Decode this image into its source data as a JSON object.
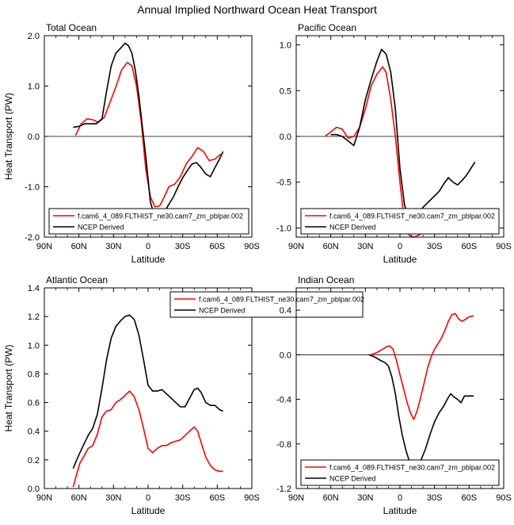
{
  "figure_title": "Annual Implied Northward Ocean Heat Transport",
  "colors": {
    "model": "#ff0000",
    "obs": "#000000",
    "axis": "#000000"
  },
  "chart_data": [
    {
      "type": "line",
      "title": "Total Ocean",
      "xlabel": "Latitude",
      "ylabel": "Heat Transport (PW)",
      "xlim": [
        -90,
        90
      ],
      "ylim": [
        -2.0,
        2.0
      ],
      "xticks": [
        -90,
        -60,
        -30,
        0,
        30,
        60,
        90
      ],
      "xticklabels": [
        "90N",
        "60N",
        "30N",
        "0",
        "30S",
        "60S",
        "90S"
      ],
      "yticks": [
        -2.0,
        -1.0,
        0.0,
        1.0,
        2.0
      ],
      "yticklabels": [
        "-2.0",
        "-1.0",
        "0.0",
        "1.0",
        "2.0"
      ],
      "zero_line": true,
      "legend_placement": "lower-left",
      "series": [
        {
          "name": "f.cam6_4_089.FLTHIST_ne30.cam7_zm_pblpar.002",
          "color": "#ff0000",
          "x": [
            -63,
            -58,
            -53,
            -48,
            -43,
            -38,
            -33,
            -28,
            -23,
            -18,
            -14,
            -10,
            -6,
            -2,
            2,
            6,
            10,
            14,
            18,
            23,
            28,
            33,
            38,
            43,
            48,
            53,
            58,
            63
          ],
          "y": [
            0.02,
            0.25,
            0.35,
            0.33,
            0.28,
            0.38,
            0.68,
            0.98,
            1.32,
            1.47,
            1.4,
            1.0,
            0.3,
            -0.65,
            -1.2,
            -1.4,
            -1.38,
            -1.2,
            -1.0,
            -0.95,
            -0.8,
            -0.55,
            -0.4,
            -0.22,
            -0.3,
            -0.48,
            -0.45,
            -0.35
          ]
        },
        {
          "name": "NCEP Derived",
          "color": "#000000",
          "x": [
            -65,
            -60,
            -55,
            -50,
            -45,
            -40,
            -36,
            -32,
            -28,
            -24,
            -20,
            -17,
            -14,
            -11,
            -8,
            -5,
            -2,
            2,
            6,
            10,
            14,
            18,
            22,
            26,
            30,
            34,
            38,
            42,
            46,
            50,
            54,
            58,
            62,
            65
          ],
          "y": [
            0.18,
            0.2,
            0.25,
            0.25,
            0.25,
            0.35,
            0.9,
            1.4,
            1.65,
            1.75,
            1.85,
            1.8,
            1.65,
            1.3,
            0.8,
            0.2,
            -0.4,
            -1.3,
            -1.62,
            -1.68,
            -1.5,
            -1.35,
            -1.2,
            -1.0,
            -0.82,
            -0.68,
            -0.55,
            -0.52,
            -0.62,
            -0.75,
            -0.8,
            -0.62,
            -0.45,
            -0.3
          ]
        }
      ]
    },
    {
      "type": "line",
      "title": "Pacific Ocean",
      "xlabel": "Latitude",
      "ylabel": "",
      "xlim": [
        -90,
        90
      ],
      "ylim": [
        -1.1,
        1.1
      ],
      "xticks": [
        -90,
        -60,
        -30,
        0,
        30,
        60,
        90
      ],
      "xticklabels": [
        "90N",
        "60N",
        "30N",
        "0",
        "30S",
        "60S",
        "90S"
      ],
      "yticks": [
        -1.0,
        -0.5,
        0.0,
        0.5,
        1.0
      ],
      "yticklabels": [
        "-1.0",
        "-0.5",
        "0.0",
        "0.5",
        "1.0"
      ],
      "zero_line": true,
      "legend_placement": "bottom-left",
      "series": [
        {
          "name": "f.cam6_4_089.FLTHIST_ne30.cam7_zm_pblpar.002",
          "color": "#ff0000",
          "x": [
            -65,
            -60,
            -55,
            -50,
            -45,
            -40,
            -35,
            -30,
            -25,
            -20,
            -15,
            -12,
            -8,
            -4,
            0,
            4,
            8,
            12,
            16,
            20,
            25,
            30,
            35,
            40,
            45,
            50,
            55,
            60,
            65
          ],
          "y": [
            0.0,
            0.05,
            0.1,
            0.08,
            -0.02,
            0.0,
            0.1,
            0.3,
            0.55,
            0.68,
            0.76,
            0.7,
            0.4,
            0.0,
            -0.5,
            -0.95,
            -1.08,
            -1.1,
            -1.08,
            -1.05,
            -1.02,
            -1.0,
            -0.98,
            -0.96,
            -0.96,
            -1.0,
            -0.95,
            -0.92,
            -0.88
          ]
        },
        {
          "name": "NCEP Derived",
          "color": "#000000",
          "x": [
            -60,
            -55,
            -50,
            -45,
            -40,
            -35,
            -30,
            -25,
            -20,
            -16,
            -12,
            -8,
            -4,
            0,
            4,
            8,
            10,
            14,
            18,
            22,
            26,
            30,
            34,
            38,
            42,
            46,
            50,
            54,
            58,
            62,
            65
          ],
          "y": [
            0.02,
            0.02,
            0.0,
            -0.05,
            -0.1,
            0.1,
            0.4,
            0.62,
            0.82,
            0.95,
            0.9,
            0.7,
            0.3,
            -0.35,
            -0.75,
            -0.9,
            -0.92,
            -0.85,
            -0.8,
            -0.75,
            -0.7,
            -0.65,
            -0.6,
            -0.52,
            -0.45,
            -0.5,
            -0.53,
            -0.48,
            -0.42,
            -0.34,
            -0.28
          ]
        }
      ]
    },
    {
      "type": "line",
      "title": "Atlantic Ocean",
      "xlabel": "Latitude",
      "ylabel": "Heat Transport (PW)",
      "xlim": [
        -90,
        90
      ],
      "ylim": [
        0.0,
        1.4
      ],
      "xticks": [
        -90,
        -60,
        -30,
        0,
        30,
        60,
        90
      ],
      "xticklabels": [
        "90N",
        "60N",
        "30N",
        "0",
        "30S",
        "60S",
        "90S"
      ],
      "yticks": [
        0.0,
        0.2,
        0.4,
        0.6,
        0.8,
        1.0,
        1.2,
        1.4
      ],
      "yticklabels": [
        "0.0",
        "0.2",
        "0.4",
        "0.6",
        "0.8",
        "1.0",
        "1.2",
        "1.4"
      ],
      "zero_line": false,
      "legend_placement": "top-right",
      "series": [
        {
          "name": "f.cam6_4_089.FLTHIST_ne30.cam7_zm_pblpar.002",
          "color": "#ff0000",
          "x": [
            -65,
            -62,
            -59,
            -56,
            -52,
            -48,
            -44,
            -40,
            -36,
            -32,
            -28,
            -24,
            -20,
            -16,
            -12,
            -8,
            -4,
            0,
            4,
            8,
            12,
            16,
            20,
            24,
            28,
            32,
            36,
            40,
            43,
            46,
            50,
            54,
            58,
            62,
            65
          ],
          "y": [
            0.01,
            0.1,
            0.18,
            0.22,
            0.28,
            0.3,
            0.38,
            0.5,
            0.54,
            0.55,
            0.6,
            0.62,
            0.65,
            0.68,
            0.64,
            0.55,
            0.42,
            0.28,
            0.25,
            0.28,
            0.3,
            0.3,
            0.32,
            0.33,
            0.34,
            0.37,
            0.4,
            0.43,
            0.4,
            0.32,
            0.22,
            0.16,
            0.13,
            0.12,
            0.12
          ]
        },
        {
          "name": "NCEP Derived",
          "color": "#000000",
          "x": [
            -65,
            -62,
            -58,
            -55,
            -52,
            -48,
            -44,
            -40,
            -36,
            -32,
            -28,
            -24,
            -20,
            -16,
            -12,
            -8,
            -4,
            0,
            4,
            8,
            12,
            16,
            20,
            24,
            28,
            32,
            36,
            40,
            43,
            46,
            50,
            54,
            58,
            62,
            65
          ],
          "y": [
            0.14,
            0.2,
            0.27,
            0.32,
            0.37,
            0.42,
            0.52,
            0.7,
            0.9,
            1.05,
            1.13,
            1.17,
            1.2,
            1.21,
            1.18,
            1.07,
            0.9,
            0.72,
            0.68,
            0.68,
            0.69,
            0.66,
            0.63,
            0.6,
            0.57,
            0.57,
            0.63,
            0.69,
            0.7,
            0.67,
            0.6,
            0.58,
            0.58,
            0.55,
            0.54
          ]
        }
      ]
    },
    {
      "type": "line",
      "title": "Indian Ocean",
      "xlabel": "Latitude",
      "ylabel": "",
      "xlim": [
        -90,
        90
      ],
      "ylim": [
        -1.2,
        0.6
      ],
      "xticks": [
        -90,
        -60,
        -30,
        0,
        30,
        60,
        90
      ],
      "xticklabels": [
        "90N",
        "60N",
        "30N",
        "0",
        "30S",
        "60S",
        "90S"
      ],
      "yticks": [
        -1.2,
        -0.8,
        -0.4,
        0.0,
        0.4
      ],
      "yticklabels": [
        "-1.2",
        "-0.8",
        "-0.4",
        "0.0",
        "0.4"
      ],
      "zero_line": true,
      "legend_placement": "bottom-left",
      "series": [
        {
          "name": "f.cam6_4_089.FLTHIST_ne30.cam7_zm_pblpar.002",
          "color": "#ff0000",
          "x": [
            -25,
            -20,
            -15,
            -12,
            -9,
            -6,
            -3,
            0,
            3,
            6,
            9,
            12,
            15,
            18,
            21,
            24,
            27,
            30,
            33,
            36,
            39,
            42,
            45,
            48,
            51,
            54,
            57,
            60,
            64
          ],
          "y": [
            0.0,
            0.02,
            0.05,
            0.07,
            0.08,
            0.05,
            -0.05,
            -0.18,
            -0.3,
            -0.42,
            -0.52,
            -0.58,
            -0.5,
            -0.38,
            -0.25,
            -0.12,
            -0.02,
            0.05,
            0.1,
            0.15,
            0.22,
            0.3,
            0.36,
            0.37,
            0.32,
            0.3,
            0.32,
            0.34,
            0.35
          ]
        },
        {
          "name": "NCEP Derived",
          "color": "#000000",
          "x": [
            -27,
            -22,
            -17,
            -13,
            -10,
            -7,
            -4,
            -1,
            2,
            5,
            8,
            10,
            12,
            15,
            18,
            22,
            26,
            30,
            34,
            38,
            41,
            44,
            47,
            50,
            53,
            56,
            60,
            64
          ],
          "y": [
            0.0,
            -0.02,
            -0.05,
            -0.07,
            -0.1,
            -0.2,
            -0.35,
            -0.55,
            -0.72,
            -0.85,
            -0.95,
            -1.03,
            -1.05,
            -1.02,
            -0.95,
            -0.85,
            -0.72,
            -0.6,
            -0.52,
            -0.46,
            -0.4,
            -0.35,
            -0.38,
            -0.4,
            -0.43,
            -0.37,
            -0.37,
            -0.37
          ]
        }
      ]
    }
  ]
}
